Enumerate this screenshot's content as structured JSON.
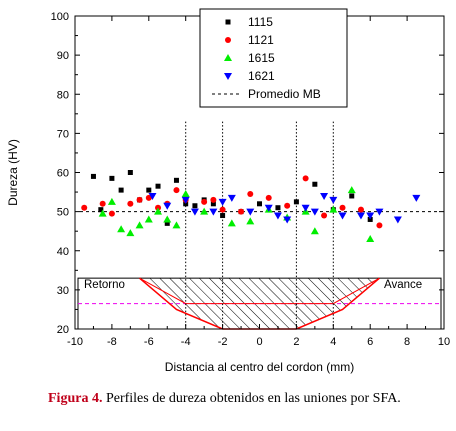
{
  "chart_data": {
    "type": "scatter",
    "xlabel": "Distancia al centro del cordon (mm)",
    "ylabel": "Dureza (HV)",
    "xlim": [
      -10,
      10
    ],
    "ylim": [
      20,
      100
    ],
    "xticks": [
      -10,
      -8,
      -6,
      -4,
      -2,
      0,
      2,
      4,
      6,
      8,
      10
    ],
    "yticks": [
      20,
      30,
      40,
      50,
      60,
      70,
      80,
      90,
      100
    ],
    "legend_position": "top-center",
    "series": [
      {
        "name": "1115",
        "color": "#000000",
        "marker": "square",
        "x": [
          -9.0,
          -8.6,
          -8.0,
          -7.5,
          -7.0,
          -6.5,
          -6.0,
          -5.5,
          -5.0,
          -4.5,
          -4.0,
          -3.5,
          -3.0,
          -2.5,
          -2.0,
          -1.0,
          0.0,
          1.0,
          2.0,
          3.0,
          4.0,
          5.0,
          6.0
        ],
        "y": [
          59.0,
          50.5,
          58.5,
          55.5,
          60.0,
          53.0,
          55.5,
          56.5,
          47.0,
          58.0,
          52.0,
          51.5,
          53.0,
          52.0,
          49.0,
          50.0,
          52.0,
          51.0,
          52.5,
          57.0,
          50.5,
          54.0,
          48.0
        ]
      },
      {
        "name": "1121",
        "color": "#ff0000",
        "marker": "circle",
        "x": [
          -9.5,
          -8.5,
          -8.0,
          -7.0,
          -6.5,
          -6.0,
          -5.5,
          -5.0,
          -4.5,
          -4.0,
          -3.0,
          -2.5,
          -2.0,
          -1.0,
          -0.5,
          0.5,
          1.5,
          2.5,
          3.5,
          4.5,
          5.5,
          6.5
        ],
        "y": [
          51.0,
          52.0,
          49.5,
          52.0,
          53.0,
          53.5,
          51.0,
          52.0,
          55.5,
          53.0,
          52.5,
          53.0,
          50.5,
          50.0,
          54.5,
          53.5,
          51.5,
          58.5,
          49.0,
          51.0,
          50.5,
          46.5
        ]
      },
      {
        "name": "1615",
        "color": "#00ee00",
        "marker": "triangle-up",
        "x": [
          -8.5,
          -8.0,
          -7.5,
          -7.0,
          -6.5,
          -6.0,
          -5.5,
          -5.0,
          -4.5,
          -4.0,
          -3.0,
          -1.5,
          -0.5,
          0.5,
          1.5,
          2.5,
          3.0,
          4.0,
          5.0,
          6.0
        ],
        "y": [
          49.5,
          52.5,
          45.5,
          44.5,
          46.5,
          48.0,
          50.0,
          48.0,
          46.5,
          54.5,
          50.0,
          47.0,
          47.5,
          50.5,
          48.5,
          50.0,
          45.0,
          50.5,
          55.5,
          43.0
        ]
      },
      {
        "name": "1621",
        "color": "#0000ff",
        "marker": "triangle-down",
        "x": [
          -5.8,
          -5.0,
          -4.0,
          -3.5,
          -2.5,
          -2.0,
          -1.5,
          -0.5,
          0.5,
          1.0,
          1.5,
          2.5,
          3.0,
          3.5,
          4.0,
          4.5,
          5.5,
          6.0,
          6.5,
          7.5,
          8.5
        ],
        "y": [
          54.0,
          51.5,
          53.0,
          50.0,
          50.0,
          52.5,
          53.5,
          50.0,
          51.0,
          49.0,
          48.0,
          51.0,
          50.0,
          54.0,
          53.0,
          49.0,
          49.0,
          49.0,
          50.0,
          48.0,
          53.5
        ]
      }
    ],
    "reference_line": {
      "name": "Promedio MB",
      "y": 50,
      "color": "#000000",
      "style": "dashed"
    },
    "vertical_lines": [
      -4,
      -2,
      2,
      4
    ],
    "inset": {
      "left_label": "Retorno",
      "right_label": "Avance",
      "y_top": 33,
      "weld_profile": {
        "x": [
          -6.5,
          -4.5,
          -2,
          2,
          4.5,
          6.5
        ],
        "y": [
          33,
          25,
          20,
          20,
          25,
          33
        ]
      },
      "haz_profile": {
        "x": [
          -6.5,
          -4,
          4,
          6.5
        ],
        "y": [
          33,
          26.5,
          26.5,
          33
        ]
      },
      "midline_y": 26.5,
      "midline_color": "#ee00ee"
    }
  },
  "caption": {
    "label": "Figura 4.",
    "text": " Perfiles de dureza obtenidos en las uniones por SFA."
  }
}
